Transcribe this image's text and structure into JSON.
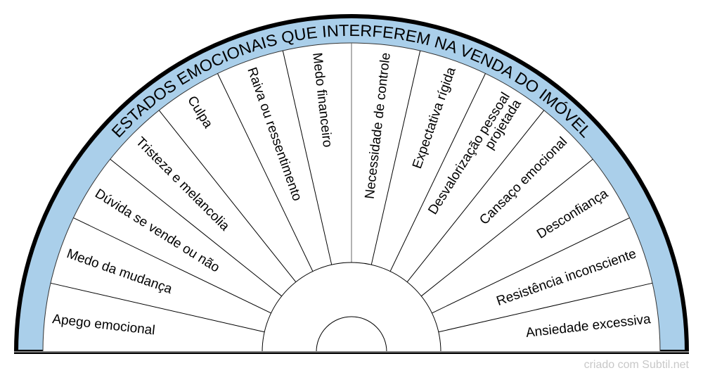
{
  "title": "ESTADOS EMOCIONAIS QUE INTERFEREM NA VENDA DO IMÓVEL",
  "sectors": [
    [
      "Apego emocional"
    ],
    [
      "Medo da mudança"
    ],
    [
      "Dúvida se vende ou não"
    ],
    [
      "Tristeza e melancolia"
    ],
    [
      "Culpa"
    ],
    [
      "Raiva ou ressentimento"
    ],
    [
      "Medo financeiro"
    ],
    [
      "Necessidade de controle"
    ],
    [
      "Expectativa rígida"
    ],
    [
      "Desvalorização pessoal",
      "projetada"
    ],
    [
      "Cansaço emocional"
    ],
    [
      "Desconfiança"
    ],
    [
      "Resistência inconsciente"
    ],
    [
      "Ansiedade excessiva"
    ]
  ],
  "footer": "criado com Subtil.net",
  "colors": {
    "band": "#aacfea",
    "rim": "#000000",
    "base_line": "#808080"
  }
}
